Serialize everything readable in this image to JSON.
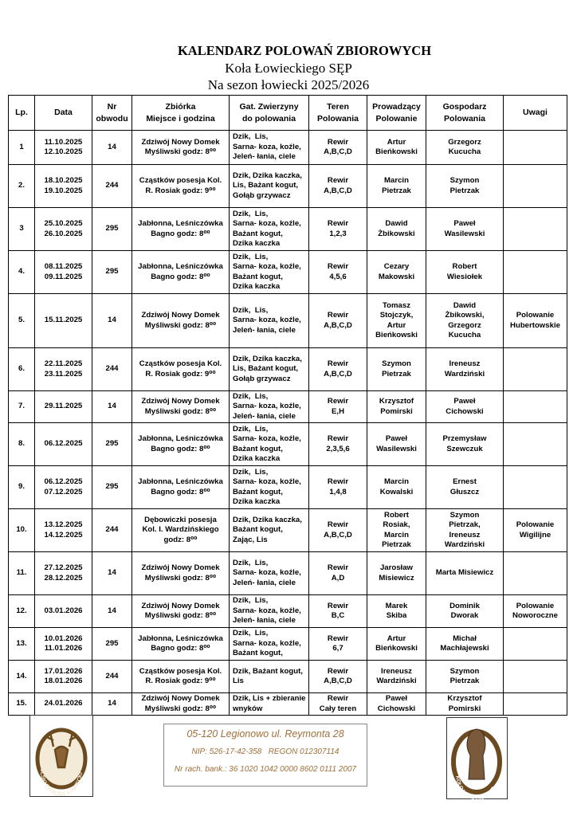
{
  "header": {
    "title": "KALENDARZ POLOWAŃ ZBIOROWYCH",
    "subtitle": "Koła Łowieckiego SĘP",
    "season": "Na sezon łowiecki 2025/2026"
  },
  "table": {
    "header": [
      [
        "Lp."
      ],
      [
        "Data"
      ],
      [
        "Nr",
        "obwodu"
      ],
      [
        "Zbiórka",
        "Miejsce i godzina"
      ],
      [
        "Gat. Zwierzyny",
        "do polowania"
      ],
      [
        "Teren",
        "Polowania"
      ],
      [
        "Prowadzący",
        "Polowanie"
      ],
      [
        "Gospodarz",
        "Polowania"
      ],
      [
        "Uwagi"
      ]
    ],
    "rows": [
      [
        [
          "1"
        ],
        [
          "11.10.2025",
          "12.10.2025"
        ],
        [
          "14"
        ],
        [
          "Zdziwój Nowy Domek",
          "Myśliwski godz: 8⁰⁰"
        ],
        [
          "Dzik,  Lis,",
          "Sarna- koza, koźle,",
          "Jeleń- łania, ciele"
        ],
        [
          "Rewir",
          "A,B,C,D"
        ],
        [
          "Artur",
          "Bieńkowski"
        ],
        [
          "Grzegorz",
          "Kucucha"
        ],
        []
      ],
      [
        [
          "2."
        ],
        [
          "18.10.2025",
          "19.10.2025"
        ],
        [
          "244"
        ],
        [
          "Cząstków posesja Kol.",
          "R. Rosiak godz: 9⁰⁰"
        ],
        [
          "Dzik, Dzika kaczka,",
          "Lis, Bażant kogut,",
          "Gołąb grzywacz"
        ],
        [
          "Rewir",
          "A,B,C,D"
        ],
        [
          "Marcin",
          "Pietrzak"
        ],
        [
          "Szymon",
          "Pietrzak"
        ],
        []
      ],
      [
        [
          "3"
        ],
        [
          "25.10.2025",
          "26.10.2025"
        ],
        [
          "295"
        ],
        [
          "Jabłonna, Leśniczówka",
          "Bagno godz: 8⁰⁰"
        ],
        [
          "Dzik,  Lis,",
          "Sarna- koza, koźle,",
          "Bażant kogut,",
          "Dzika kaczka"
        ],
        [
          "Rewir",
          "1,2,3"
        ],
        [
          "Dawid",
          "Żbikowski"
        ],
        [
          "Paweł",
          "Wasilewski"
        ],
        []
      ],
      [
        [
          "4."
        ],
        [
          "08.11.2025",
          "09.11.2025"
        ],
        [
          "295"
        ],
        [
          "Jabłonna, Leśniczówka",
          "Bagno godz: 8⁰⁰"
        ],
        [
          "Dzik,  Lis,",
          "Sarna- koza, koźle,",
          "Bażant kogut,",
          "Dzika kaczka"
        ],
        [
          "Rewir",
          "4,5,6"
        ],
        [
          "Cezary",
          "Makowski"
        ],
        [
          "Robert",
          "Wiesiołek"
        ],
        []
      ],
      [
        [
          "5."
        ],
        [
          "15.11.2025"
        ],
        [
          "14"
        ],
        [
          "Zdziwój Nowy Domek",
          "Myśliwski godz: 8⁰⁰"
        ],
        [
          "Dzik,  Lis,",
          "Sarna- koza, koźle,",
          "Jeleń- łania, ciele"
        ],
        [
          "Rewir",
          "A,B,C,D"
        ],
        [
          "Tomasz",
          "Stojczyk,",
          "Artur",
          "Bieńkowski"
        ],
        [
          "Dawid",
          "Żbikowski,",
          "Grzegorz",
          "Kucucha"
        ],
        [
          "Polowanie",
          "Hubertowskie"
        ]
      ],
      [
        [
          "6."
        ],
        [
          "22.11.2025",
          "23.11.2025"
        ],
        [
          "244"
        ],
        [
          "Cząstków posesja Kol.",
          "R. Rosiak godz: 9⁰⁰"
        ],
        [
          "Dzik, Dzika kaczka,",
          "Lis, Bażant kogut,",
          "Gołąb grzywacz"
        ],
        [
          "Rewir",
          "A,B,C,D"
        ],
        [
          "Szymon",
          "Pietrzak"
        ],
        [
          "Ireneusz",
          "Wardziński"
        ],
        []
      ],
      [
        [
          "7."
        ],
        [
          "29.11.2025"
        ],
        [
          "14"
        ],
        [
          "Zdziwój Nowy Domek",
          "Myśliwski godz: 8⁰⁰"
        ],
        [
          "Dzik,  Lis,",
          "Sarna- koza, koźle,",
          "Jeleń- łania, ciele"
        ],
        [
          "Rewir",
          "E,H"
        ],
        [
          "Krzysztof",
          "Pomirski"
        ],
        [
          "Paweł",
          "Cichowski"
        ],
        []
      ],
      [
        [
          "8."
        ],
        [
          "06.12.2025"
        ],
        [
          "295"
        ],
        [
          "Jabłonna, Leśniczówka",
          "Bagno godz: 8⁰⁰"
        ],
        [
          "Dzik,  Lis,",
          "Sarna- koza, koźle,",
          "Bażant kogut,",
          "Dzika kaczka"
        ],
        [
          "Rewir",
          "2,3,5,6"
        ],
        [
          "Paweł",
          "Wasilewski"
        ],
        [
          "Przemysław",
          "Szewczuk"
        ],
        []
      ],
      [
        [
          "9."
        ],
        [
          "06.12.2025",
          "07.12.2025"
        ],
        [
          "295"
        ],
        [
          "Jabłonna, Leśniczówka",
          "Bagno godz: 8⁰⁰"
        ],
        [
          "Dzik,  Lis,",
          "Sarna- koza, koźle,",
          "Bażant kogut,",
          "Dzika kaczka"
        ],
        [
          "Rewir",
          "1,4,8"
        ],
        [
          "Marcin",
          "Kowalski"
        ],
        [
          "Ernest",
          "Głuszcz"
        ],
        []
      ],
      [
        [
          "10."
        ],
        [
          "13.12.2025",
          "14.12.2025"
        ],
        [
          "244"
        ],
        [
          "Dębowiczki posesja",
          "Kol. I. Wardzińskiego",
          "godz: 8⁰⁰"
        ],
        [
          "Dzik, Dzika kaczka,",
          "Bażant kogut,",
          "Zając, Lis"
        ],
        [
          "Rewir",
          "A,B,C,D"
        ],
        [
          "Robert",
          "Rosiak,",
          "Marcin",
          "Pietrzak"
        ],
        [
          "Szymon",
          "Pietrzak,",
          "Ireneusz",
          "Wardziński"
        ],
        [
          "Polowanie",
          "Wigilijne"
        ]
      ],
      [
        [
          "11."
        ],
        [
          "27.12.2025",
          "28.12.2025"
        ],
        [
          "14"
        ],
        [
          "Zdziwój Nowy Domek",
          "Myśliwski godz: 8⁰⁰"
        ],
        [
          "Dzik,  Lis,",
          "Sarna- koza, koźle,",
          "Jeleń- łania, ciele"
        ],
        [
          "Rewir",
          "A,D"
        ],
        [
          "Jarosław",
          "Misiewicz"
        ],
        [
          "Marta Misiewicz"
        ],
        []
      ],
      [
        [
          "12."
        ],
        [
          "03.01.2026"
        ],
        [
          "14"
        ],
        [
          "Zdziwój Nowy Domek",
          "Myśliwski godz: 8⁰⁰"
        ],
        [
          "Dzik,  Lis,",
          "Sarna- koza, koźle,",
          "Jeleń- łania, ciele"
        ],
        [
          "Rewir",
          "B,C"
        ],
        [
          "Marek",
          "Skiba"
        ],
        [
          "Dominik",
          "Dworak"
        ],
        [
          "Polowanie",
          "Noworoczne"
        ]
      ],
      [
        [
          "13."
        ],
        [
          "10.01.2026",
          "11.01.2026"
        ],
        [
          "295"
        ],
        [
          "Jabłonna, Leśniczówka",
          "Bagno godz: 8⁰⁰"
        ],
        [
          "Dzik,  Lis,",
          "Sarna- koza, koźle,",
          "Bażant kogut,"
        ],
        [
          "Rewir",
          "6,7"
        ],
        [
          "Artur",
          "Bieńkowski"
        ],
        [
          "Michał",
          "Machłajewski"
        ],
        []
      ],
      [
        [
          "14."
        ],
        [
          "17.01.2026",
          "18.01.2026"
        ],
        [
          "244"
        ],
        [
          "Cząstków posesja Kol.",
          "R. Rosiak godz: 9⁰⁰"
        ],
        [
          "Dzik, Bażant kogut,",
          "Lis"
        ],
        [
          "Rewir",
          "A,B,C,D"
        ],
        [
          "Ireneusz",
          "Wardziński"
        ],
        [
          "Szymon",
          "Pietrzak"
        ],
        []
      ],
      [
        [
          "15."
        ],
        [
          "24.01.2026"
        ],
        [
          "14"
        ],
        [
          "Zdziwój Nowy Domek",
          "Myśliwski godz: 8⁰⁰"
        ],
        [
          "Dzik, Lis + zbieranie",
          "wnyków"
        ],
        [
          "Rewir",
          "Cały teren"
        ],
        [
          "Paweł",
          "Cichowski"
        ],
        [
          "Krzysztof",
          "Pomirski"
        ],
        []
      ]
    ]
  },
  "footer": {
    "address": "05-120 Legionowo ul. Reymonta 28",
    "ids": "NIP: 526-17-42-358   REGON 012307114",
    "bank": "Nr rach. bank.: 36 1020 1042 0000 8602 0111 2007"
  },
  "logos": {
    "left": "POLSKI ZWIĄZEK ŁOWIECKI",
    "right": "KOŁO ŁOWIECKIE SĘP"
  }
}
